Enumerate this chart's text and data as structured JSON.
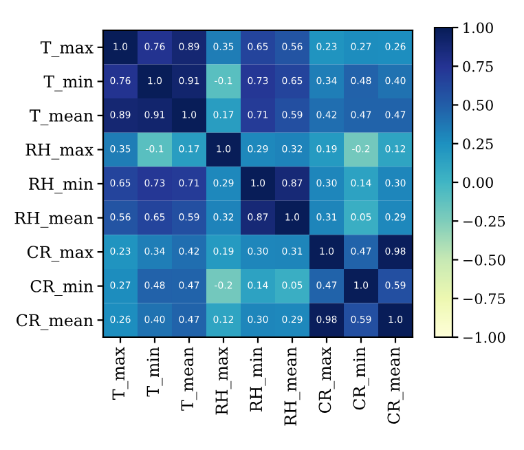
{
  "chart_data": {
    "type": "heatmap",
    "categories": [
      "T_max",
      "T_min",
      "T_mean",
      "RH_max",
      "RH_min",
      "RH_mean",
      "CR_max",
      "CR_min",
      "CR_mean"
    ],
    "y_categories": [
      "T_max",
      "T_min",
      "T_mean",
      "RH_max",
      "RH_min",
      "RH_mean",
      "CR_max",
      "CR_min",
      "CR_mean"
    ],
    "cells": [
      [
        1.0,
        0.76,
        0.89,
        0.35,
        0.65,
        0.56,
        0.23,
        0.27,
        0.26
      ],
      [
        0.76,
        1.0,
        0.91,
        -0.1,
        0.73,
        0.65,
        0.34,
        0.48,
        0.4
      ],
      [
        0.89,
        0.91,
        1.0,
        0.17,
        0.71,
        0.59,
        0.42,
        0.47,
        0.47
      ],
      [
        0.35,
        -0.1,
        0.17,
        1.0,
        0.29,
        0.32,
        0.19,
        -0.2,
        0.12
      ],
      [
        0.65,
        0.73,
        0.71,
        0.29,
        1.0,
        0.87,
        0.3,
        0.14,
        0.3
      ],
      [
        0.56,
        0.65,
        0.59,
        0.32,
        0.87,
        1.0,
        0.31,
        0.05,
        0.29
      ],
      [
        0.23,
        0.34,
        0.42,
        0.19,
        0.3,
        0.31,
        1.0,
        0.47,
        0.98
      ],
      [
        0.27,
        0.48,
        0.47,
        -0.2,
        0.14,
        0.05,
        0.47,
        1.0,
        0.59
      ],
      [
        0.26,
        0.4,
        0.47,
        0.12,
        0.3,
        0.29,
        0.98,
        0.59,
        1.0
      ]
    ],
    "cell_labels": [
      [
        "1.0",
        "0.76",
        "0.89",
        "0.35",
        "0.65",
        "0.56",
        "0.23",
        "0.27",
        "0.26"
      ],
      [
        "0.76",
        "1.0",
        "0.91",
        "-0.1",
        "0.73",
        "0.65",
        "0.34",
        "0.48",
        "0.40"
      ],
      [
        "0.89",
        "0.91",
        "1.0",
        "0.17",
        "0.71",
        "0.59",
        "0.42",
        "0.47",
        "0.47"
      ],
      [
        "0.35",
        "-0.1",
        "0.17",
        "1.0",
        "0.29",
        "0.32",
        "0.19",
        "-0.2",
        "0.12"
      ],
      [
        "0.65",
        "0.73",
        "0.71",
        "0.29",
        "1.0",
        "0.87",
        "0.30",
        "0.14",
        "0.30"
      ],
      [
        "0.56",
        "0.65",
        "0.59",
        "0.32",
        "0.87",
        "1.0",
        "0.31",
        "0.05",
        "0.29"
      ],
      [
        "0.23",
        "0.34",
        "0.42",
        "0.19",
        "0.30",
        "0.31",
        "1.0",
        "0.47",
        "0.98"
      ],
      [
        "0.27",
        "0.48",
        "0.47",
        "-0.2",
        "0.14",
        "0.05",
        "0.47",
        "1.0",
        "0.59"
      ],
      [
        "0.26",
        "0.40",
        "0.47",
        "0.12",
        "0.30",
        "0.29",
        "0.98",
        "0.59",
        "1.0"
      ]
    ],
    "clim": [
      -1.0,
      1.0
    ],
    "cticks": [
      {
        "value": 1.0,
        "label": "1.00"
      },
      {
        "value": 0.75,
        "label": "0.75"
      },
      {
        "value": 0.5,
        "label": "0.50"
      },
      {
        "value": 0.25,
        "label": "0.25"
      },
      {
        "value": 0.0,
        "label": "0.00"
      },
      {
        "value": -0.25,
        "label": "−0.25"
      },
      {
        "value": -0.5,
        "label": "−0.50"
      },
      {
        "value": -0.75,
        "label": "−0.75"
      },
      {
        "value": -1.0,
        "label": "−1.00"
      }
    ]
  }
}
